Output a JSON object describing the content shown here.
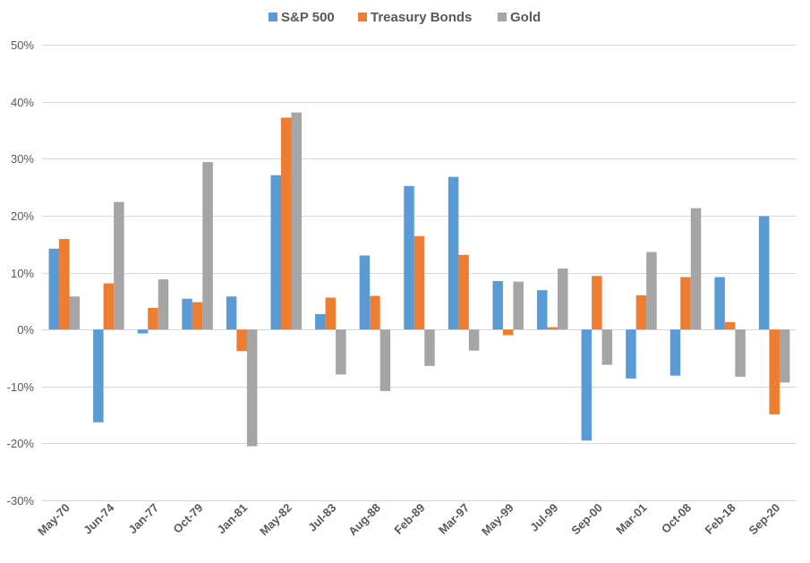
{
  "colors": {
    "sp500": "#5B9BD5",
    "treasury": "#ED7D31",
    "gold": "#A5A5A5",
    "grid": "#D9D9D9",
    "text": "#595959"
  },
  "chart_data": {
    "type": "bar",
    "title": "",
    "xlabel": "",
    "ylabel": "",
    "legend_position": "top-center",
    "grid": true,
    "ylim": [
      -30,
      50
    ],
    "y_ticks": [
      "-30%",
      "-20%",
      "-10%",
      "0%",
      "10%",
      "20%",
      "30%",
      "40%",
      "50%"
    ],
    "y_tick_values": [
      -30,
      -20,
      -10,
      0,
      10,
      20,
      30,
      40,
      50
    ],
    "categories": [
      "May-70",
      "Jun-74",
      "Jan-77",
      "Oct-79",
      "Jan-81",
      "May-82",
      "Jul-83",
      "Aug-88",
      "Feb-89",
      "Mar-97",
      "May-99",
      "Jul-99",
      "Sep-00",
      "Mar-01",
      "Oct-08",
      "Feb-18",
      "Sep-20"
    ],
    "series": [
      {
        "name": "S&P 500",
        "color_key": "sp500",
        "values": [
          14.2,
          -16.3,
          -0.7,
          5.4,
          5.8,
          27.1,
          2.7,
          13.0,
          25.2,
          26.8,
          8.5,
          6.9,
          -19.5,
          -8.6,
          -8.1,
          9.2,
          19.9
        ]
      },
      {
        "name": "Treasury Bonds",
        "color_key": "treasury",
        "values": [
          15.9,
          8.1,
          3.8,
          4.8,
          -3.8,
          37.2,
          5.6,
          5.9,
          16.4,
          13.1,
          -1.0,
          0.4,
          9.4,
          6.0,
          9.2,
          1.3,
          -14.9
        ]
      },
      {
        "name": "Gold",
        "color_key": "gold",
        "values": [
          5.8,
          22.4,
          8.8,
          29.4,
          -20.5,
          38.1,
          -7.9,
          -10.8,
          -6.4,
          -3.7,
          8.4,
          10.7,
          -6.2,
          13.6,
          21.3,
          -8.3,
          -9.3
        ]
      }
    ]
  }
}
